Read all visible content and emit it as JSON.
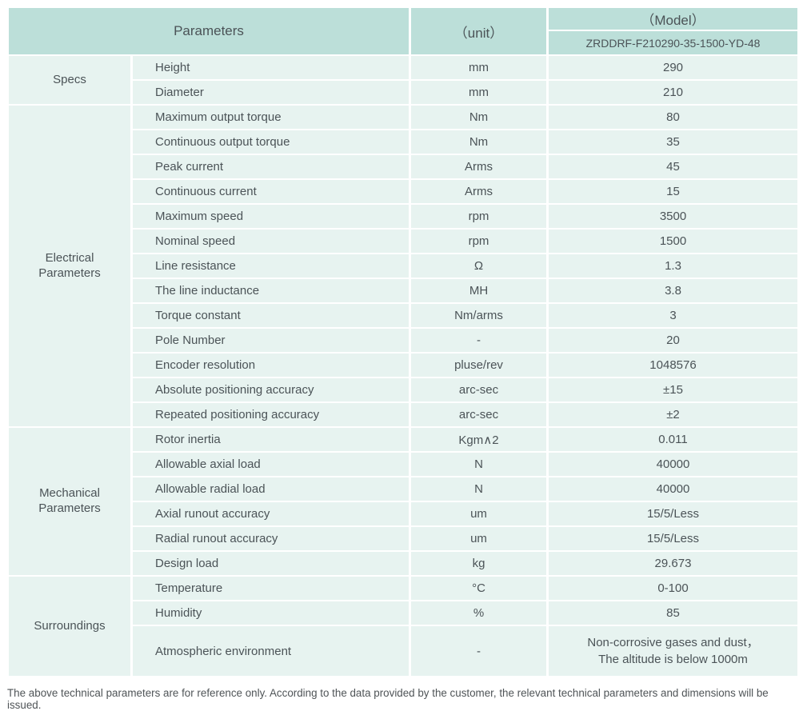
{
  "colors": {
    "header_bg": "#bcdfd9",
    "cell_bg": "#e7f3f0",
    "separator": "#ffffff",
    "text": "#4b5357"
  },
  "table": {
    "header": {
      "parameters_label": "Parameters",
      "unit_label": "（unit）",
      "model_label": "（Model）",
      "model_value": "ZRDDRF-F210290-35-1500-YD-48"
    },
    "sections": [
      {
        "id": "specs",
        "group": "Specs",
        "rows": [
          {
            "name": "Height",
            "unit": "mm",
            "value": "290"
          },
          {
            "name": "Diameter",
            "unit": "mm",
            "value": "210"
          }
        ]
      },
      {
        "id": "electrical-parameters",
        "group": "Electrical Parameters",
        "rows": [
          {
            "name": "Maximum output torque",
            "unit": "Nm",
            "value": "80"
          },
          {
            "name": "Continuous output torque",
            "unit": "Nm",
            "value": "35"
          },
          {
            "name": "Peak current",
            "unit": "Arms",
            "value": "45"
          },
          {
            "name": "Continuous current",
            "unit": "Arms",
            "value": "15"
          },
          {
            "name": "Maximum speed",
            "unit": "rpm",
            "value": "3500"
          },
          {
            "name": "Nominal speed",
            "unit": "rpm",
            "value": "1500"
          },
          {
            "name": "Line resistance",
            "unit": "Ω",
            "value": "1.3"
          },
          {
            "name": "The line inductance",
            "unit": "MH",
            "value": "3.8"
          },
          {
            "name": "Torque constant",
            "unit": "Nm/arms",
            "value": "3"
          },
          {
            "name": "Pole Number",
            "unit": "-",
            "value": "20"
          },
          {
            "name": "Encoder resolution",
            "unit": "pluse/rev",
            "value": "1048576"
          },
          {
            "name": "Absolute positioning accuracy",
            "unit": "arc-sec",
            "value": "±15"
          },
          {
            "name": "Repeated positioning accuracy",
            "unit": "arc-sec",
            "value": "±2"
          }
        ]
      },
      {
        "id": "mechanical-parameters",
        "group": "Mechanical Parameters",
        "rows": [
          {
            "name": "Rotor inertia",
            "unit": "Kgm∧2",
            "value": "0.011"
          },
          {
            "name": "Allowable axial load",
            "unit": "N",
            "value": "40000"
          },
          {
            "name": "Allowable radial load",
            "unit": "N",
            "value": "40000"
          },
          {
            "name": "Axial runout accuracy",
            "unit": "um",
            "value": "15/5/Less"
          },
          {
            "name": "Radial runout accuracy",
            "unit": "um",
            "value": "15/5/Less"
          },
          {
            "name": "Design load",
            "unit": "kg",
            "value": "29.673"
          }
        ]
      },
      {
        "id": "surroundings",
        "group": "Surroundings",
        "rows": [
          {
            "name": "Temperature",
            "unit": "°C",
            "value": "0-100"
          },
          {
            "name": "Humidity",
            "unit": "%",
            "value": "85"
          },
          {
            "name": "Atmospheric environment",
            "unit": "-",
            "value": "Non-corrosive gases and dust，\nThe altitude is below 1000m"
          }
        ]
      }
    ]
  },
  "footer": {
    "note": "The above technical parameters are for reference only. According to the data provided by the customer, the relevant technical parameters and dimensions will be issued."
  }
}
